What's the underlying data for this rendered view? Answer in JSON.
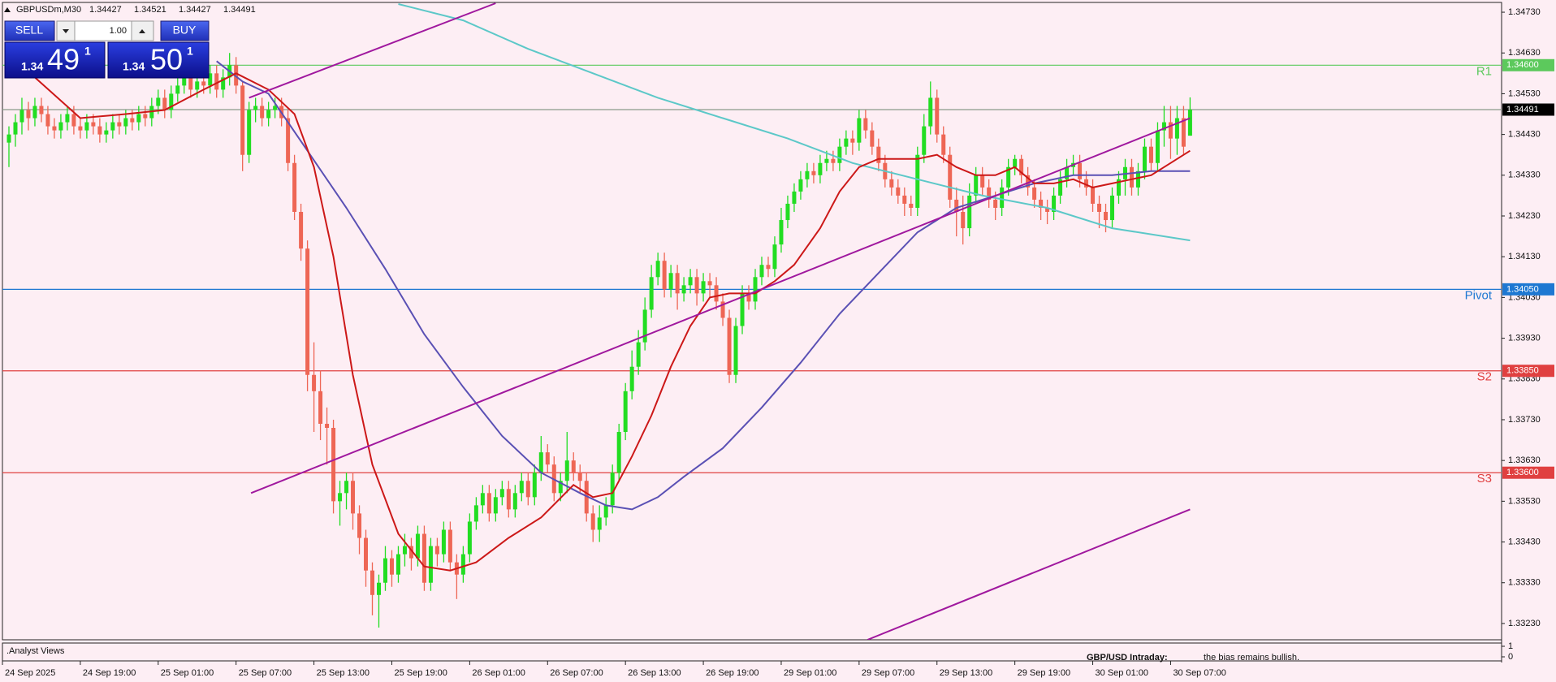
{
  "header": {
    "symbol": "GBPUSDm,M30",
    "ohlc": [
      1.34427,
      1.34521,
      1.34427,
      1.34491
    ]
  },
  "trade_panel": {
    "sell": "SELL",
    "buy": "BUY",
    "lot": "1.00",
    "sell_price": {
      "big": "1.34",
      "pips": "49",
      "fraction": "1"
    },
    "buy_price": {
      "big": "1.34",
      "pips": "50",
      "fraction": "1"
    }
  },
  "indicator": {
    "title": ".Analyst Views",
    "yticks": [
      1,
      0
    ]
  },
  "footer": {
    "heading": "GBP/USD Intraday:",
    "text": "the bias remains bullish."
  },
  "chart_data": {
    "type": "candlestick",
    "up_color": "#22dd22",
    "down_color": "#ee6655",
    "open": [
      1.3441,
      1.3443,
      1.3446,
      1.3449,
      1.3447,
      1.345,
      1.3448,
      1.3445,
      1.3444,
      1.3446,
      1.3448,
      1.3445,
      1.3444,
      1.3446,
      1.3445,
      1.3443,
      1.3444,
      1.3446,
      1.3445,
      1.3447,
      1.3446,
      1.3448,
      1.3447,
      1.345,
      1.3452,
      1.3449,
      1.3453,
      1.3455,
      1.3457,
      1.3454,
      1.3456,
      1.3455,
      1.3458,
      1.3454,
      1.3457,
      1.346,
      1.3455,
      1.3438,
      1.3449,
      1.345,
      1.3447,
      1.3449,
      1.345,
      1.3447,
      1.3436,
      1.3424,
      1.3415,
      1.3384,
      1.338,
      1.3372,
      1.3371,
      1.3353,
      1.3355,
      1.3358,
      1.335,
      1.3344,
      1.3336,
      1.333,
      1.3333,
      1.3339,
      1.3335,
      1.334,
      1.3342,
      1.3339,
      1.3345,
      1.3333,
      1.3342,
      1.334,
      1.3346,
      1.3338,
      1.3335,
      1.334,
      1.3348,
      1.3352,
      1.3355,
      1.335,
      1.3354,
      1.3356,
      1.3351,
      1.3355,
      1.3358,
      1.3354,
      1.336,
      1.3365,
      1.3362,
      1.3355,
      1.3358,
      1.3363,
      1.336,
      1.3358,
      1.335,
      1.3346,
      1.3349,
      1.3352,
      1.336,
      1.337,
      1.338,
      1.3386,
      1.3392,
      1.34,
      1.3408,
      1.3412,
      1.3405,
      1.3409,
      1.3404,
      1.3406,
      1.3408,
      1.3404,
      1.3407,
      1.3406,
      1.3402,
      1.3398,
      1.3384,
      1.3396,
      1.3404,
      1.3402,
      1.3408,
      1.3411,
      1.341,
      1.3416,
      1.3422,
      1.3426,
      1.3429,
      1.3432,
      1.3434,
      1.3433,
      1.3436,
      1.3437,
      1.3436,
      1.344,
      1.3442,
      1.3441,
      1.3447,
      1.3444,
      1.344,
      1.3436,
      1.3432,
      1.343,
      1.3428,
      1.3426,
      1.3425,
      1.3438,
      1.3445,
      1.3452,
      1.3443,
      1.3438,
      1.3427,
      1.3424,
      1.342,
      1.3428,
      1.3433,
      1.343,
      1.3427,
      1.3425,
      1.343,
      1.3435,
      1.3437,
      1.3433,
      1.343,
      1.3427,
      1.3425,
      1.3424,
      1.3428,
      1.3432,
      1.3435,
      1.3436,
      1.3432,
      1.343,
      1.3426,
      1.3424,
      1.3422,
      1.3428,
      1.3432,
      1.3435,
      1.343,
      1.3434,
      1.344,
      1.3436,
      1.3444,
      1.3446,
      1.3442,
      1.3447,
      1.34427
    ],
    "high": [
      1.3445,
      1.3448,
      1.3452,
      1.3451,
      1.3452,
      1.3452,
      1.345,
      1.3447,
      1.3448,
      1.345,
      1.345,
      1.3447,
      1.3448,
      1.3448,
      1.3447,
      1.3446,
      1.3448,
      1.3448,
      1.3449,
      1.3449,
      1.345,
      1.345,
      1.3452,
      1.3454,
      1.3454,
      1.3455,
      1.3458,
      1.3459,
      1.3459,
      1.3458,
      1.3458,
      1.346,
      1.346,
      1.3459,
      1.3463,
      1.3462,
      1.3456,
      1.3451,
      1.3452,
      1.3452,
      1.3451,
      1.3452,
      1.3452,
      1.3449,
      1.3438,
      1.3426,
      1.3417,
      1.3392,
      1.3385,
      1.3376,
      1.3373,
      1.3358,
      1.336,
      1.336,
      1.3352,
      1.3346,
      1.3338,
      1.3335,
      1.3342,
      1.3341,
      1.3342,
      1.3345,
      1.3344,
      1.3347,
      1.3347,
      1.3344,
      1.3344,
      1.3348,
      1.3348,
      1.334,
      1.3342,
      1.335,
      1.3354,
      1.3357,
      1.3357,
      1.3356,
      1.3358,
      1.3358,
      1.3357,
      1.336,
      1.336,
      1.3362,
      1.3369,
      1.3367,
      1.3364,
      1.336,
      1.337,
      1.3365,
      1.3362,
      1.336,
      1.3352,
      1.3352,
      1.3354,
      1.3362,
      1.3372,
      1.3382,
      1.339,
      1.3395,
      1.3403,
      1.3411,
      1.3414,
      1.3414,
      1.3411,
      1.3411,
      1.3408,
      1.341,
      1.341,
      1.3409,
      1.3409,
      1.3408,
      1.3404,
      1.34,
      1.3398,
      1.3406,
      1.3406,
      1.341,
      1.3413,
      1.3413,
      1.3418,
      1.3425,
      1.3428,
      1.3431,
      1.3434,
      1.3436,
      1.3436,
      1.3438,
      1.3439,
      1.3439,
      1.3442,
      1.3444,
      1.3444,
      1.3449,
      1.3449,
      1.3446,
      1.3442,
      1.3438,
      1.3434,
      1.3432,
      1.343,
      1.3428,
      1.344,
      1.3448,
      1.3456,
      1.3454,
      1.3445,
      1.344,
      1.343,
      1.3428,
      1.3431,
      1.3435,
      1.3435,
      1.3432,
      1.3429,
      1.3432,
      1.3437,
      1.3438,
      1.3438,
      1.3435,
      1.3432,
      1.3429,
      1.3427,
      1.343,
      1.3434,
      1.3437,
      1.3438,
      1.3438,
      1.3434,
      1.3432,
      1.3428,
      1.3426,
      1.343,
      1.3434,
      1.3437,
      1.3437,
      1.3436,
      1.3442,
      1.3442,
      1.3446,
      1.345,
      1.345,
      1.345,
      1.345,
      1.34521
    ],
    "low": [
      1.3435,
      1.344,
      1.3443,
      1.3444,
      1.3445,
      1.3446,
      1.3443,
      1.3442,
      1.3442,
      1.3444,
      1.3443,
      1.3442,
      1.3442,
      1.3443,
      1.3441,
      1.3441,
      1.3442,
      1.3443,
      1.3443,
      1.3444,
      1.3444,
      1.3445,
      1.3445,
      1.3448,
      1.3447,
      1.3447,
      1.3451,
      1.3453,
      1.3452,
      1.3452,
      1.3453,
      1.3453,
      1.3452,
      1.3452,
      1.3455,
      1.3453,
      1.3434,
      1.3436,
      1.3446,
      1.3445,
      1.3445,
      1.3447,
      1.3445,
      1.3434,
      1.3422,
      1.3412,
      1.338,
      1.337,
      1.3368,
      1.3362,
      1.335,
      1.3347,
      1.3351,
      1.3346,
      1.334,
      1.3332,
      1.3325,
      1.3322,
      1.3331,
      1.3332,
      1.3333,
      1.3337,
      1.3336,
      1.3337,
      1.3331,
      1.3331,
      1.3337,
      1.3338,
      1.3336,
      1.3329,
      1.3333,
      1.3338,
      1.3346,
      1.335,
      1.3348,
      1.3348,
      1.3352,
      1.3349,
      1.3349,
      1.3353,
      1.3352,
      1.3352,
      1.3358,
      1.336,
      1.3353,
      1.3353,
      1.3355,
      1.3358,
      1.3355,
      1.3348,
      1.3343,
      1.3343,
      1.3347,
      1.335,
      1.3358,
      1.3368,
      1.3378,
      1.3384,
      1.339,
      1.3398,
      1.3406,
      1.3403,
      1.3403,
      1.34,
      1.3402,
      1.3404,
      1.3401,
      1.3402,
      1.3403,
      1.34,
      1.3396,
      1.3382,
      1.3382,
      1.3394,
      1.34,
      1.34,
      1.3406,
      1.3408,
      1.3408,
      1.3414,
      1.342,
      1.3424,
      1.3427,
      1.343,
      1.3431,
      1.3431,
      1.3434,
      1.3434,
      1.3434,
      1.3438,
      1.3438,
      1.3439,
      1.3442,
      1.3438,
      1.3434,
      1.343,
      1.3428,
      1.3426,
      1.3423,
      1.3423,
      1.3423,
      1.3436,
      1.3443,
      1.3441,
      1.3436,
      1.3425,
      1.3418,
      1.3416,
      1.3418,
      1.3426,
      1.3428,
      1.3425,
      1.3422,
      1.3423,
      1.3428,
      1.3433,
      1.3431,
      1.3428,
      1.3425,
      1.3422,
      1.3421,
      1.3422,
      1.3426,
      1.343,
      1.3433,
      1.343,
      1.3428,
      1.3424,
      1.342,
      1.3419,
      1.342,
      1.3426,
      1.3428,
      1.3428,
      1.3428,
      1.3432,
      1.3434,
      1.3434,
      1.344,
      1.3437,
      1.3438,
      1.3438,
      1.34427
    ],
    "close": [
      1.3443,
      1.3446,
      1.3449,
      1.3447,
      1.345,
      1.3448,
      1.3445,
      1.3444,
      1.3446,
      1.3448,
      1.3445,
      1.3444,
      1.3446,
      1.3445,
      1.3443,
      1.3444,
      1.3446,
      1.3445,
      1.3447,
      1.3446,
      1.3448,
      1.3447,
      1.345,
      1.3452,
      1.3449,
      1.3453,
      1.3455,
      1.3457,
      1.3454,
      1.3456,
      1.3455,
      1.3458,
      1.3454,
      1.3457,
      1.346,
      1.3455,
      1.3438,
      1.3449,
      1.345,
      1.3447,
      1.3449,
      1.345,
      1.3447,
      1.3436,
      1.3424,
      1.3415,
      1.3384,
      1.338,
      1.3372,
      1.3371,
      1.3353,
      1.3355,
      1.3358,
      1.335,
      1.3344,
      1.3336,
      1.333,
      1.3333,
      1.3339,
      1.3335,
      1.334,
      1.3342,
      1.3339,
      1.3345,
      1.3333,
      1.3342,
      1.334,
      1.3346,
      1.3338,
      1.3335,
      1.334,
      1.3348,
      1.3352,
      1.3355,
      1.335,
      1.3354,
      1.3356,
      1.3351,
      1.3355,
      1.3358,
      1.3354,
      1.336,
      1.3365,
      1.3362,
      1.3355,
      1.3358,
      1.3363,
      1.336,
      1.3358,
      1.335,
      1.3346,
      1.3349,
      1.3352,
      1.336,
      1.337,
      1.338,
      1.3386,
      1.3392,
      1.34,
      1.3408,
      1.3412,
      1.3405,
      1.3409,
      1.3404,
      1.3406,
      1.3408,
      1.3404,
      1.3407,
      1.3406,
      1.3402,
      1.3398,
      1.3384,
      1.3396,
      1.3404,
      1.3402,
      1.3408,
      1.3411,
      1.341,
      1.3416,
      1.3422,
      1.3426,
      1.3429,
      1.3432,
      1.3434,
      1.3433,
      1.3436,
      1.3437,
      1.3436,
      1.344,
      1.3442,
      1.3441,
      1.3447,
      1.3444,
      1.344,
      1.3436,
      1.3432,
      1.343,
      1.3428,
      1.3426,
      1.3425,
      1.3438,
      1.3445,
      1.3452,
      1.3443,
      1.3438,
      1.3427,
      1.3424,
      1.342,
      1.3428,
      1.3433,
      1.343,
      1.3427,
      1.3425,
      1.343,
      1.3435,
      1.3437,
      1.3433,
      1.343,
      1.3427,
      1.3425,
      1.3424,
      1.3428,
      1.3432,
      1.3435,
      1.3436,
      1.3432,
      1.343,
      1.3426,
      1.3424,
      1.3422,
      1.3428,
      1.3432,
      1.3435,
      1.343,
      1.3434,
      1.344,
      1.3436,
      1.3444,
      1.3446,
      1.3442,
      1.3447,
      1.344,
      1.34491
    ],
    "xlim": [
      -1,
      230
    ],
    "xticks": [
      {
        "value": -1,
        "label": "24 Sep 2025"
      },
      {
        "value": 11,
        "label": "24 Sep 19:00"
      },
      {
        "value": 23,
        "label": "25 Sep 01:00"
      },
      {
        "value": 35,
        "label": "25 Sep 07:00"
      },
      {
        "value": 47,
        "label": "25 Sep 13:00"
      },
      {
        "value": 59,
        "label": "25 Sep 19:00"
      },
      {
        "value": 71,
        "label": "26 Sep 01:00"
      },
      {
        "value": 83,
        "label": "26 Sep 07:00"
      },
      {
        "value": 95,
        "label": "26 Sep 13:00"
      },
      {
        "value": 107,
        "label": "26 Sep 19:00"
      },
      {
        "value": 119,
        "label": "29 Sep 01:00"
      },
      {
        "value": 131,
        "label": "29 Sep 07:00"
      },
      {
        "value": 143,
        "label": "29 Sep 13:00"
      },
      {
        "value": 155,
        "label": "29 Sep 19:00"
      },
      {
        "value": 167,
        "label": "30 Sep 01:00"
      },
      {
        "value": 179,
        "label": "30 Sep 07:00"
      }
    ],
    "ylim": [
      1.3319,
      1.34754
    ],
    "yticks": [
      {
        "value": 1.3473,
        "label": "1.34730"
      },
      {
        "value": 1.3463,
        "label": "1.34630"
      },
      {
        "value": 1.3453,
        "label": "1.34530"
      },
      {
        "value": 1.3443,
        "label": "1.34430"
      },
      {
        "value": 1.3433,
        "label": "1.34330"
      },
      {
        "value": 1.3423,
        "label": "1.34230"
      },
      {
        "value": 1.3413,
        "label": "1.34130"
      },
      {
        "value": 1.3403,
        "label": "1.34030"
      },
      {
        "value": 1.3393,
        "label": "1.33930"
      },
      {
        "value": 1.3383,
        "label": "1.33830"
      },
      {
        "value": 1.3373,
        "label": "1.33730"
      },
      {
        "value": 1.3363,
        "label": "1.33630"
      },
      {
        "value": 1.3353,
        "label": "1.33530"
      },
      {
        "value": 1.3343,
        "label": "1.33430"
      },
      {
        "value": 1.3333,
        "label": "1.33330"
      },
      {
        "value": 1.3323,
        "label": "1.33230"
      }
    ],
    "grid": false,
    "levels": [
      {
        "label": "R1",
        "value": 1.346,
        "value_label": "1.34600",
        "color": "#5cc95c"
      },
      {
        "value": 1.34491,
        "value_label": "1.34491",
        "color": "#8a9a8a",
        "tag_color": "#000000"
      },
      {
        "label": "Pivot",
        "value": 1.3405,
        "value_label": "1.34050",
        "color": "#1e78d2"
      },
      {
        "label": "S2",
        "value": 1.3385,
        "value_label": "1.33850",
        "color": "#e04040"
      },
      {
        "label": "S3",
        "value": 1.336,
        "value_label": "1.33600",
        "color": "#e04040"
      }
    ],
    "lines": [
      {
        "color": "#5cc8c8",
        "x": [
          60,
          70,
          80,
          90,
          100,
          110,
          120,
          130,
          140,
          150,
          160,
          170,
          182
        ],
        "values": [
          1.3475,
          1.3471,
          1.3464,
          1.3458,
          1.3452,
          1.3447,
          1.3442,
          1.3436,
          1.3432,
          1.3428,
          1.3425,
          1.342,
          1.3417
        ]
      },
      {
        "color": "#5a50b4",
        "x": [
          32,
          36,
          40,
          46,
          52,
          58,
          64,
          70,
          76,
          82,
          88,
          92,
          96,
          100,
          104,
          110,
          116,
          122,
          128,
          134,
          140,
          146,
          152,
          158,
          164,
          170,
          176,
          182
        ],
        "values": [
          1.3461,
          1.3456,
          1.3453,
          1.3439,
          1.3425,
          1.341,
          1.3394,
          1.3381,
          1.3369,
          1.336,
          1.3355,
          1.3352,
          1.3351,
          1.3354,
          1.3359,
          1.3366,
          1.3376,
          1.3387,
          1.3399,
          1.3409,
          1.3419,
          1.3425,
          1.3428,
          1.3431,
          1.3433,
          1.3433,
          1.3434,
          1.3434
        ]
      },
      {
        "color": "#cc1818",
        "x": [
          4,
          11,
          18,
          24,
          30,
          35,
          40,
          44,
          47,
          50,
          53,
          56,
          60,
          64,
          68,
          72,
          77,
          82,
          87,
          90,
          93,
          96,
          99,
          102,
          105,
          108,
          111,
          115,
          118,
          121,
          125,
          128,
          131,
          134,
          137,
          140,
          143,
          146,
          149,
          152,
          155,
          158,
          161,
          164,
          167,
          170,
          173,
          176,
          179,
          182
        ],
        "values": [
          1.3457,
          1.3447,
          1.3448,
          1.3449,
          1.3454,
          1.3458,
          1.3454,
          1.3448,
          1.3435,
          1.3413,
          1.3384,
          1.3362,
          1.3345,
          1.3337,
          1.3336,
          1.3338,
          1.3344,
          1.3349,
          1.3357,
          1.3354,
          1.3355,
          1.3364,
          1.3374,
          1.3386,
          1.3396,
          1.3403,
          1.3404,
          1.3404,
          1.3407,
          1.3411,
          1.342,
          1.3429,
          1.3435,
          1.3437,
          1.3437,
          1.3437,
          1.3438,
          1.3435,
          1.3433,
          1.3433,
          1.3435,
          1.3431,
          1.3431,
          1.3432,
          1.343,
          1.3431,
          1.3432,
          1.3433,
          1.3436,
          1.3439
        ]
      }
    ],
    "trendlines": [
      {
        "color": "#a0189e",
        "x": [
          37.3,
          182
        ],
        "values": [
          1.3355,
          1.3447
        ]
      },
      {
        "color": "#a0189e",
        "x": [
          37,
          75
        ],
        "values": [
          1.3452,
          1.34752
        ]
      },
      {
        "color": "#a0189e",
        "x": [
          132.3,
          182
        ],
        "values": [
          1.3319,
          1.3351
        ]
      }
    ]
  }
}
